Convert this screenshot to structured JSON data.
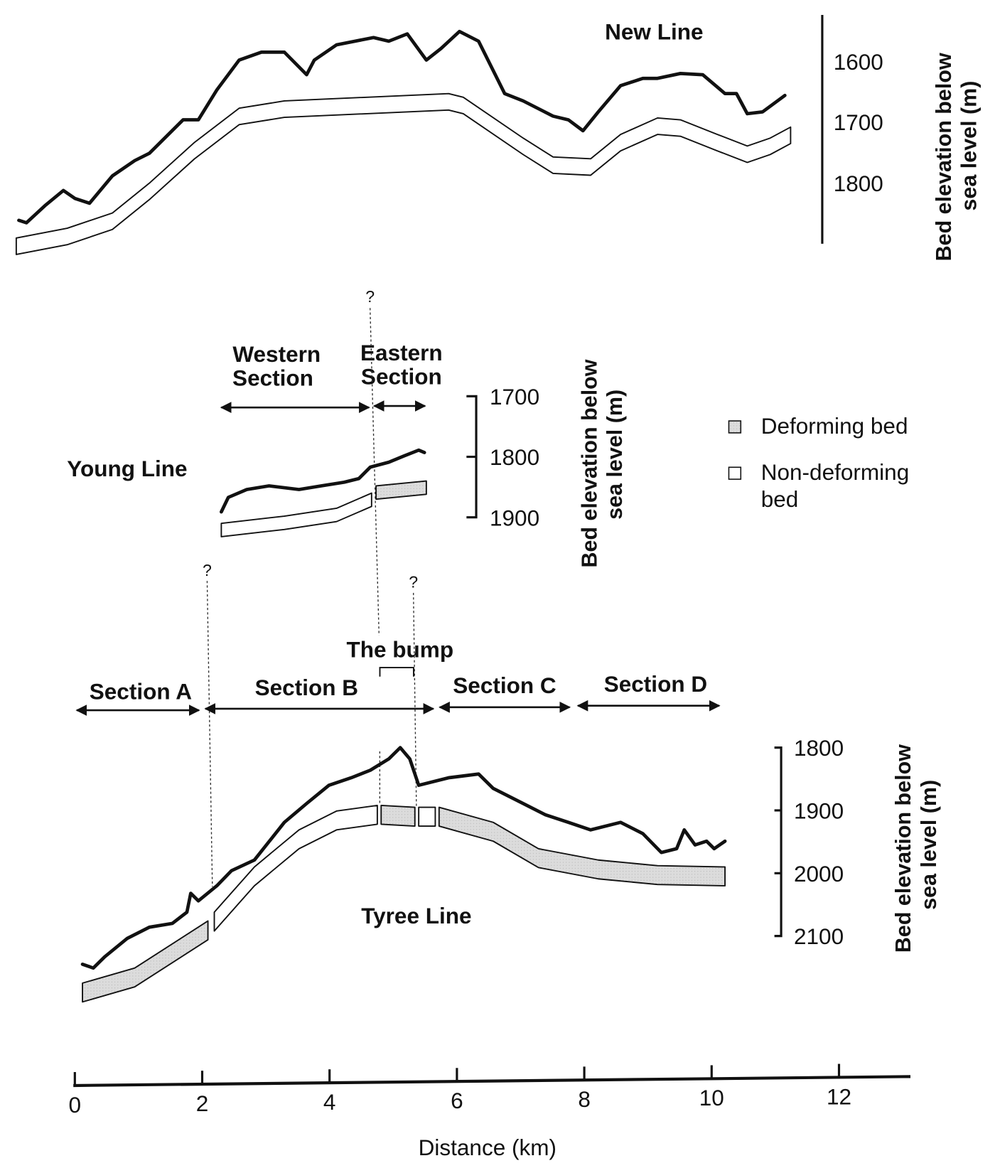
{
  "chart_data": {
    "type": "line",
    "title": "",
    "xlabel": "Distance (km)",
    "xticks": [
      0,
      2,
      4,
      6,
      8,
      10,
      12
    ],
    "xlim": [
      0,
      13
    ],
    "legend": {
      "placement": "right",
      "items": [
        {
          "label": "Deforming bed",
          "fill": "#d9d9d9"
        },
        {
          "label": "Non-deforming",
          "label2": "bed",
          "fill": "#ffffff"
        }
      ]
    },
    "panels": [
      {
        "id": "new",
        "name": "New Line",
        "ylabel1": "Bed elevation below",
        "ylabel2": "sea level (m)",
        "yticks": [
          "1600",
          "1700",
          "1800"
        ],
        "profile": [
          [
            -0.88,
            1861
          ],
          [
            -0.76,
            1865
          ],
          [
            -0.47,
            1837
          ],
          [
            -0.18,
            1812
          ],
          [
            0,
            1825
          ],
          [
            0.23,
            1833
          ],
          [
            0.59,
            1788
          ],
          [
            0.94,
            1763
          ],
          [
            1.17,
            1751
          ],
          [
            1.7,
            1696
          ],
          [
            1.94,
            1696
          ],
          [
            2.23,
            1647
          ],
          [
            2.58,
            1598
          ],
          [
            2.93,
            1585
          ],
          [
            3.29,
            1585
          ],
          [
            3.64,
            1622
          ],
          [
            3.76,
            1598
          ],
          [
            4.11,
            1573
          ],
          [
            4.4,
            1567
          ],
          [
            4.69,
            1561
          ],
          [
            4.93,
            1567
          ],
          [
            5.22,
            1555
          ],
          [
            5.52,
            1598
          ],
          [
            5.75,
            1579
          ],
          [
            6.04,
            1551
          ],
          [
            6.34,
            1567
          ],
          [
            6.75,
            1653
          ],
          [
            7.04,
            1665
          ],
          [
            7.51,
            1690
          ],
          [
            7.75,
            1696
          ],
          [
            7.98,
            1714
          ],
          [
            8.22,
            1683
          ],
          [
            8.57,
            1640
          ],
          [
            8.92,
            1628
          ],
          [
            9.15,
            1628
          ],
          [
            9.51,
            1620
          ],
          [
            9.86,
            1622
          ],
          [
            10.21,
            1653
          ],
          [
            10.39,
            1653
          ],
          [
            10.56,
            1686
          ],
          [
            10.8,
            1683
          ],
          [
            11.15,
            1656
          ]
        ],
        "bed_thickness_m": 27,
        "beds": [
          {
            "type": "non-deforming",
            "top": [
              [
                -0.92,
                1890
              ],
              [
                -0.12,
                1874
              ],
              [
                0.59,
                1849
              ],
              [
                1.17,
                1800
              ],
              [
                1.88,
                1733
              ],
              [
                2.58,
                1677
              ],
              [
                3.29,
                1665
              ],
              [
                5.87,
                1653
              ],
              [
                6.1,
                1659
              ],
              [
                7.04,
                1726
              ],
              [
                7.51,
                1757
              ],
              [
                8.1,
                1760
              ],
              [
                8.57,
                1720
              ],
              [
                9.15,
                1693
              ],
              [
                9.51,
                1696
              ],
              [
                10.09,
                1720
              ],
              [
                10.56,
                1739
              ],
              [
                10.92,
                1726
              ],
              [
                11.24,
                1708
              ]
            ]
          }
        ]
      },
      {
        "id": "young",
        "name": "Young Line",
        "ylabel1": "Bed elevation below",
        "ylabel2": "sea level (m)",
        "yticks": [
          "1700",
          "1800",
          "1900"
        ],
        "profile": [
          [
            2.3,
            1891
          ],
          [
            2.41,
            1867
          ],
          [
            2.7,
            1854
          ],
          [
            3.05,
            1848
          ],
          [
            3.52,
            1854
          ],
          [
            3.87,
            1848
          ],
          [
            4.23,
            1842
          ],
          [
            4.46,
            1836
          ],
          [
            4.64,
            1817
          ],
          [
            4.93,
            1809
          ],
          [
            5.16,
            1799
          ],
          [
            5.4,
            1789
          ],
          [
            5.49,
            1793
          ]
        ],
        "bed_thickness_m": 22,
        "beds": [
          {
            "type": "non-deforming",
            "top": [
              [
                2.3,
                1910
              ],
              [
                3.29,
                1898
              ],
              [
                4.11,
                1885
              ],
              [
                4.66,
                1860
              ]
            ]
          },
          {
            "type": "deforming",
            "top": [
              [
                4.73,
                1848
              ],
              [
                5.52,
                1840
              ]
            ]
          }
        ],
        "sections": [
          {
            "label1": "Western",
            "label2": "Section",
            "from": 2.3,
            "to": 4.62
          },
          {
            "label1": "Eastern",
            "label2": "Section",
            "from": 4.7,
            "to": 5.5
          }
        ],
        "uncertain_mark": "?"
      },
      {
        "id": "tyree",
        "name": "Tyree Line",
        "ylabel1": "Bed elevation below",
        "ylabel2": "sea level (m)",
        "yticks": [
          "1800",
          "1900",
          "2000",
          "2100"
        ],
        "profile": [
          [
            0.12,
            2145
          ],
          [
            0.29,
            2151
          ],
          [
            0.47,
            2133
          ],
          [
            0.82,
            2104
          ],
          [
            1.17,
            2086
          ],
          [
            1.53,
            2080
          ],
          [
            1.76,
            2062
          ],
          [
            1.82,
            2032
          ],
          [
            1.94,
            2044
          ],
          [
            2.23,
            2020
          ],
          [
            2.46,
            1996
          ],
          [
            2.82,
            1979
          ],
          [
            3.29,
            1919
          ],
          [
            3.64,
            1889
          ],
          [
            3.99,
            1860
          ],
          [
            4.34,
            1848
          ],
          [
            4.64,
            1836
          ],
          [
            4.93,
            1818
          ],
          [
            5.11,
            1800
          ],
          [
            5.26,
            1818
          ],
          [
            5.4,
            1860
          ],
          [
            5.87,
            1848
          ],
          [
            6.34,
            1842
          ],
          [
            6.57,
            1865
          ],
          [
            7.04,
            1889
          ],
          [
            7.39,
            1907
          ],
          [
            7.75,
            1919
          ],
          [
            8.1,
            1931
          ],
          [
            8.57,
            1919
          ],
          [
            8.92,
            1937
          ],
          [
            9.21,
            1967
          ],
          [
            9.45,
            1961
          ],
          [
            9.57,
            1931
          ],
          [
            9.74,
            1955
          ],
          [
            9.92,
            1949
          ],
          [
            10.04,
            1961
          ],
          [
            10.21,
            1949
          ]
        ],
        "bed_thickness_m": 30,
        "beds": [
          {
            "type": "deforming",
            "top": [
              [
                0.12,
                2175
              ],
              [
                0.94,
                2151
              ],
              [
                2.09,
                2076
              ]
            ]
          },
          {
            "type": "non-deforming",
            "top": [
              [
                2.19,
                2062
              ],
              [
                2.82,
                1990
              ],
              [
                3.52,
                1931
              ],
              [
                4.11,
                1901
              ],
              [
                4.75,
                1892
              ]
            ]
          },
          {
            "type": "deforming",
            "top": [
              [
                4.81,
                1892
              ],
              [
                5.34,
                1895
              ]
            ]
          },
          {
            "type": "non-deforming",
            "top": [
              [
                5.4,
                1895
              ],
              [
                5.66,
                1895
              ]
            ]
          },
          {
            "type": "deforming",
            "top": [
              [
                5.72,
                1895
              ],
              [
                6.57,
                1919
              ],
              [
                7.28,
                1961
              ],
              [
                8.22,
                1979
              ],
              [
                9.15,
                1988
              ],
              [
                10.21,
                1990
              ]
            ]
          }
        ],
        "sections": [
          {
            "label": "Section A",
            "from": 0.03,
            "to": 1.95
          },
          {
            "label": "Section B",
            "from": 2.05,
            "to": 5.63
          },
          {
            "label": "Section C",
            "from": 5.73,
            "to": 7.77
          },
          {
            "label": "Section D",
            "from": 7.9,
            "to": 10.12
          }
        ],
        "bump": {
          "label": "The bump",
          "from": 4.79,
          "to": 5.32
        },
        "uncertain_mark": "?"
      }
    ]
  }
}
